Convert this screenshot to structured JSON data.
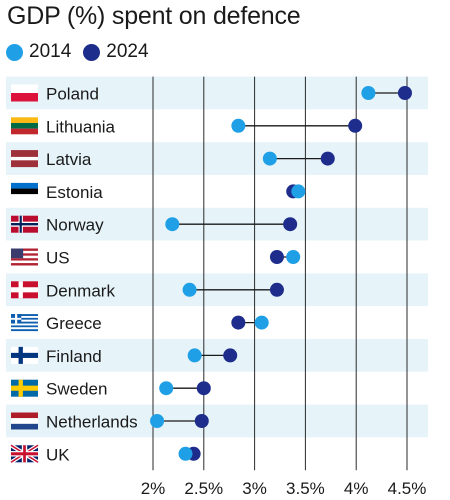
{
  "chart_data": {
    "type": "dumbbell",
    "title": "GDP (%) spent on defence",
    "series": [
      {
        "name": "2014",
        "color": "#1fa0e6"
      },
      {
        "name": "2024",
        "color": "#1e2d8c"
      }
    ],
    "xlim": [
      2,
      4.5
    ],
    "x_ticks": [
      2,
      2.5,
      3,
      3.5,
      4,
      4.5
    ],
    "x_tick_labels": [
      "2%",
      "2.5%",
      "3%",
      "3.5%",
      "4%",
      "4.5%"
    ],
    "grid": true,
    "legend_position": "top-left",
    "rows": [
      {
        "country": "Poland",
        "flag": "poland",
        "v2014": 4.12,
        "v2024": 4.48
      },
      {
        "country": "Lithuania",
        "flag": "lithuania",
        "v2014": 2.84,
        "v2024": 3.99
      },
      {
        "country": "Latvia",
        "flag": "latvia",
        "v2014": 3.15,
        "v2024": 3.72
      },
      {
        "country": "Estonia",
        "flag": "estonia",
        "v2014": 3.43,
        "v2024": 3.38
      },
      {
        "country": "Norway",
        "flag": "norway",
        "v2014": 2.19,
        "v2024": 3.35
      },
      {
        "country": "US",
        "flag": "us",
        "v2014": 3.38,
        "v2024": 3.22
      },
      {
        "country": "Denmark",
        "flag": "denmark",
        "v2014": 2.36,
        "v2024": 3.22
      },
      {
        "country": "Greece",
        "flag": "greece",
        "v2014": 3.07,
        "v2024": 2.84
      },
      {
        "country": "Finland",
        "flag": "finland",
        "v2014": 2.41,
        "v2024": 2.76
      },
      {
        "country": "Sweden",
        "flag": "sweden",
        "v2014": 2.13,
        "v2024": 2.5
      },
      {
        "country": "Netherlands",
        "flag": "netherlands",
        "v2014": 2.04,
        "v2024": 2.48
      },
      {
        "country": "UK",
        "flag": "uk",
        "v2014": 2.32,
        "v2024": 2.4
      }
    ]
  }
}
